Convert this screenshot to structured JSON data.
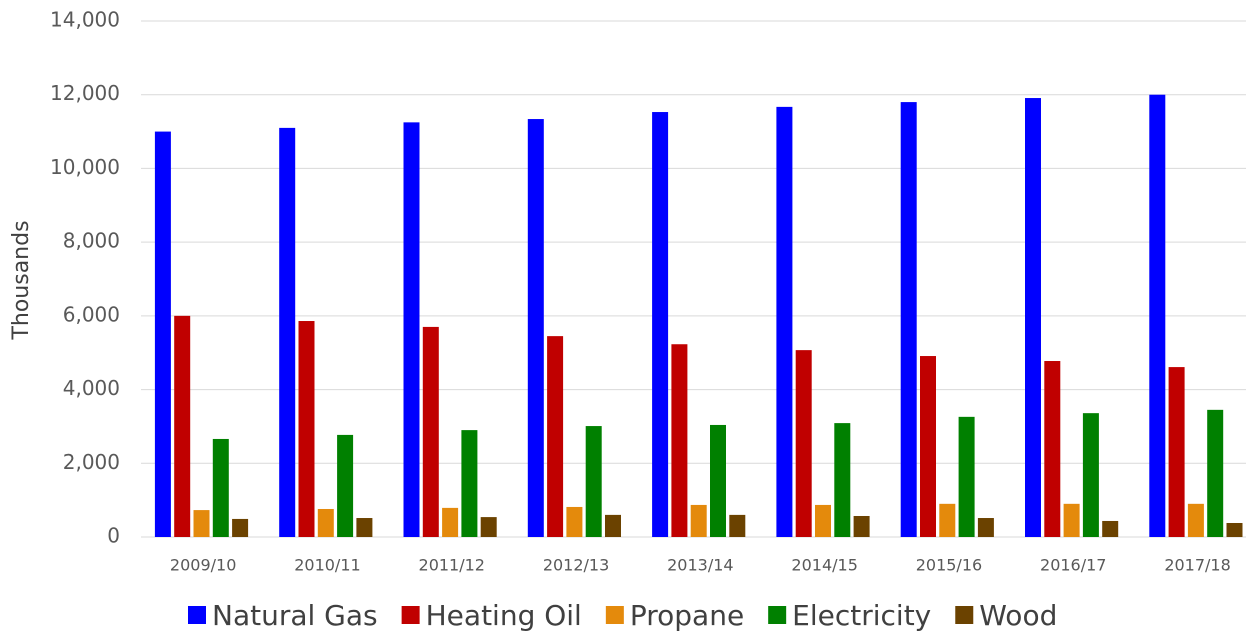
{
  "chart_data": {
    "type": "bar",
    "y_label": "Thousands",
    "categories": [
      "2009/10",
      "2010/11",
      "2011/12",
      "2012/13",
      "2013/14",
      "2014/15",
      "2015/16",
      "2016/17",
      "2017/18"
    ],
    "series": [
      {
        "name": "Natural Gas",
        "color": "#0000ff",
        "values": [
          11000,
          11100,
          11250,
          11340,
          11530,
          11670,
          11800,
          11910,
          12000
        ]
      },
      {
        "name": "Heating Oil",
        "color": "#c00000",
        "values": [
          6000,
          5860,
          5700,
          5450,
          5230,
          5070,
          4910,
          4775,
          4610
        ]
      },
      {
        "name": "Propane",
        "color": "#e48a0c",
        "values": [
          730,
          760,
          790,
          815,
          870,
          870,
          900,
          900,
          900
        ]
      },
      {
        "name": "Electricity",
        "color": "#008000",
        "values": [
          2660,
          2770,
          2900,
          3010,
          3040,
          3090,
          3260,
          3360,
          3450
        ]
      },
      {
        "name": "Wood",
        "color": "#6b4200",
        "values": [
          490,
          515,
          540,
          600,
          600,
          570,
          515,
          435,
          380
        ]
      }
    ],
    "ylim": [
      0,
      14000
    ],
    "yticks": [
      0,
      {
        "value": 2000,
        "label": "2,000"
      },
      {
        "value": 4000,
        "label": "4,000"
      },
      {
        "value": 6000,
        "label": "6,000"
      },
      {
        "value": 8000,
        "label": "8,000"
      },
      {
        "value": 10000,
        "label": "10,000"
      },
      {
        "value": 12000,
        "label": "12,000"
      },
      {
        "value": 14000,
        "label": "14,000"
      }
    ],
    "grid": true,
    "legend": "bottom"
  }
}
